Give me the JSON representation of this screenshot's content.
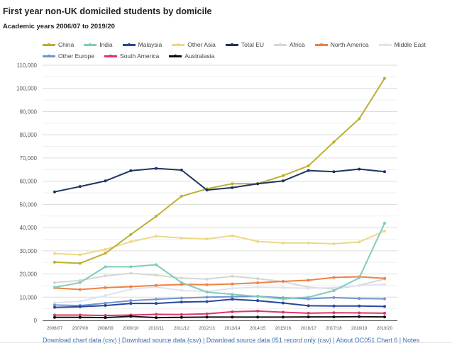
{
  "chart_data": {
    "type": "line",
    "title": "First year non-UK domiciled students by domicile",
    "subtitle": "Academic years 2006/07 to 2019/20",
    "xlabel": "",
    "ylabel": "",
    "ylim": [
      0,
      110000
    ],
    "yticks": [
      0,
      10000,
      20000,
      30000,
      40000,
      50000,
      60000,
      70000,
      80000,
      90000,
      100000,
      110000
    ],
    "ytick_labels": [
      "0",
      "10,000",
      "20,000",
      "30,000",
      "40,000",
      "50,000",
      "60,000",
      "70,000",
      "80,000",
      "90,000",
      "100,000",
      "110,000"
    ],
    "grid": true,
    "legend_position": "top",
    "categories": [
      "2006/07",
      "2007/08",
      "2008/09",
      "2009/10",
      "2010/11",
      "2011/12",
      "2012/13",
      "2013/14",
      "2014/15",
      "2015/16",
      "2016/17",
      "2017/18",
      "2018/19",
      "2019/20"
    ],
    "series": [
      {
        "name": "China",
        "color": "#bcb032",
        "values": [
          25100,
          24600,
          28900,
          37000,
          44900,
          53500,
          56700,
          58900,
          58900,
          62400,
          66600,
          76900,
          86900,
          104300
        ]
      },
      {
        "name": "India",
        "color": "#7fcdbb",
        "values": [
          14200,
          16300,
          23100,
          23100,
          24000,
          16300,
          12200,
          11200,
          10300,
          9200,
          10000,
          12800,
          18300,
          41900
        ]
      },
      {
        "name": "Malaysia",
        "color": "#27479a",
        "values": [
          5600,
          5900,
          6400,
          7300,
          7300,
          7900,
          8100,
          9100,
          8500,
          7500,
          6300,
          6200,
          6200,
          6000
        ]
      },
      {
        "name": "Other Asia",
        "color": "#ecd888",
        "values": [
          28800,
          28300,
          30600,
          33900,
          36300,
          35500,
          35100,
          36500,
          34000,
          33400,
          33400,
          33000,
          33800,
          38500
        ]
      },
      {
        "name": "Total EU",
        "color": "#1e3461",
        "values": [
          55400,
          57700,
          60100,
          64500,
          65500,
          64800,
          56200,
          57200,
          58900,
          60100,
          64600,
          64100,
          65200,
          64100
        ]
      },
      {
        "name": "Africa",
        "color": "#d6d6d6",
        "values": [
          16300,
          17200,
          19200,
          20300,
          19500,
          18200,
          17800,
          19000,
          18000,
          16700,
          14300,
          13500,
          15100,
          17800
        ]
      },
      {
        "name": "North America",
        "color": "#ee8245",
        "values": [
          14000,
          13300,
          14100,
          14500,
          15100,
          15500,
          15400,
          15700,
          16200,
          16800,
          17300,
          18500,
          18800,
          18100
        ]
      },
      {
        "name": "Middle East",
        "color": "#dfe4ef",
        "values": [
          7600,
          8200,
          10700,
          13400,
          14400,
          12900,
          12400,
          13800,
          14300,
          14100,
          13800,
          14100,
          15000,
          15500
        ]
      },
      {
        "name": "Other Europe",
        "color": "#7294cd",
        "values": [
          6600,
          6400,
          7400,
          8500,
          9100,
          9600,
          10000,
          10200,
          10400,
          9700,
          9300,
          9800,
          9400,
          9300
        ]
      },
      {
        "name": "South America",
        "color": "#d8386a",
        "values": [
          2300,
          2300,
          2100,
          2300,
          2600,
          2500,
          2800,
          3700,
          4000,
          3500,
          3100,
          3300,
          3200,
          3100
        ]
      },
      {
        "name": "Australasia",
        "color": "#111111",
        "values": [
          1300,
          1300,
          1200,
          1700,
          1200,
          1300,
          1400,
          1400,
          1400,
          1400,
          1500,
          1500,
          1600,
          1500
        ]
      }
    ]
  },
  "legend_rows": [
    [
      0,
      1,
      2,
      3,
      4,
      5,
      6,
      7
    ],
    [
      8,
      9,
      10
    ]
  ],
  "footer": {
    "links": [
      "Download chart data (csv)",
      "Download source data (csv)",
      "Download source data 051 record only (csv)",
      "About OC051 Chart 6",
      "Notes"
    ],
    "separator": " | "
  }
}
